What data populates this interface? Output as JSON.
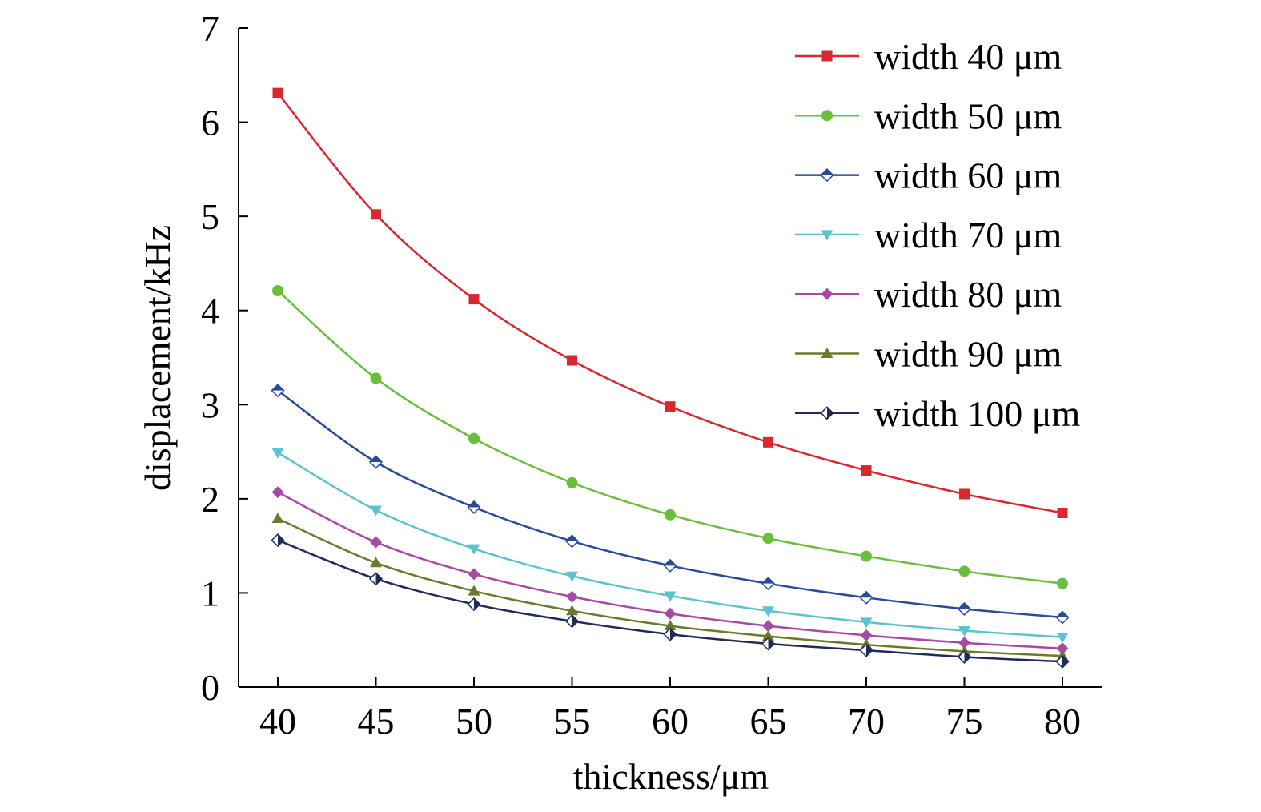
{
  "chart_data": {
    "type": "line",
    "title": "",
    "xlabel": "thickness/μm",
    "ylabel": "displacement/kHz",
    "x": [
      40,
      45,
      50,
      55,
      60,
      65,
      70,
      75,
      80
    ],
    "xlim": [
      38,
      82
    ],
    "ylim": [
      0,
      7
    ],
    "xticks": [
      40,
      45,
      50,
      55,
      60,
      65,
      70,
      75,
      80
    ],
    "yticks": [
      0,
      1,
      2,
      3,
      4,
      5,
      6,
      7
    ],
    "grid": false,
    "legend_position": "top-right",
    "series": [
      {
        "name": "width 40 μm",
        "color": "#d7282f",
        "marker": "square",
        "values": [
          6.31,
          5.02,
          4.12,
          3.47,
          2.98,
          2.6,
          2.3,
          2.05,
          1.85
        ]
      },
      {
        "name": "width 50 μm",
        "color": "#6abf3a",
        "marker": "circle",
        "values": [
          4.21,
          3.28,
          2.64,
          2.17,
          1.83,
          1.58,
          1.39,
          1.23,
          1.1
        ]
      },
      {
        "name": "width 60 μm",
        "color": "#2b4a9a",
        "marker": "diamond-half",
        "values": [
          3.15,
          2.39,
          1.91,
          1.55,
          1.29,
          1.1,
          0.95,
          0.83,
          0.74
        ]
      },
      {
        "name": "width 70 μm",
        "color": "#5bc3cc",
        "marker": "triangle-down",
        "values": [
          2.49,
          1.88,
          1.47,
          1.18,
          0.97,
          0.81,
          0.69,
          0.6,
          0.53
        ]
      },
      {
        "name": "width 80 μm",
        "color": "#a64aa6",
        "marker": "diamond",
        "values": [
          2.07,
          1.54,
          1.2,
          0.96,
          0.78,
          0.65,
          0.55,
          0.47,
          0.41
        ]
      },
      {
        "name": "width 90 μm",
        "color": "#6b7a2a",
        "marker": "triangle-up",
        "values": [
          1.79,
          1.32,
          1.02,
          0.81,
          0.65,
          0.54,
          0.45,
          0.38,
          0.33
        ]
      },
      {
        "name": "width 100 μm",
        "color": "#1f2a5a",
        "marker": "half-circle",
        "values": [
          1.56,
          1.15,
          0.88,
          0.7,
          0.56,
          0.46,
          0.39,
          0.32,
          0.27
        ]
      }
    ]
  }
}
